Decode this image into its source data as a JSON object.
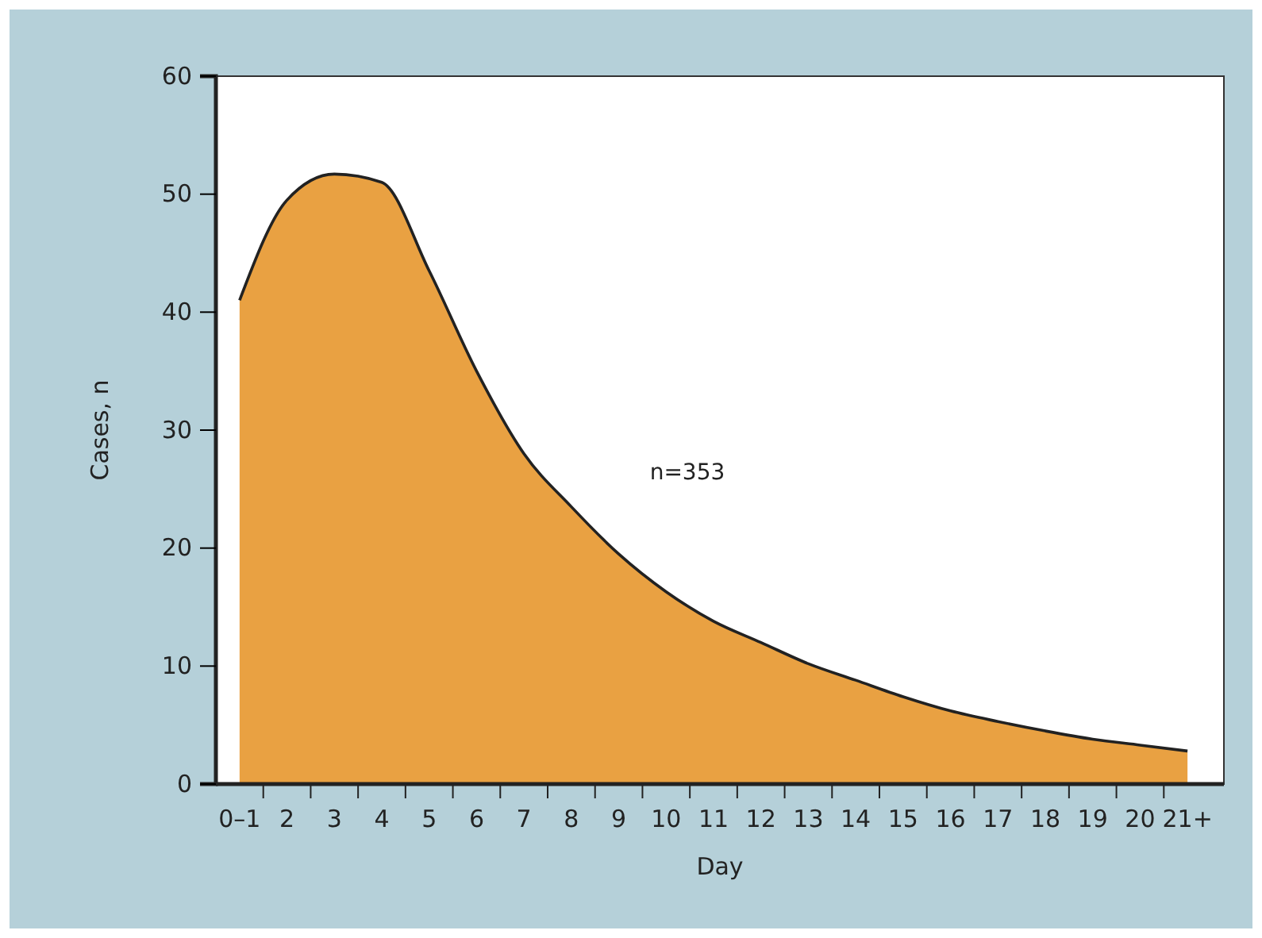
{
  "chart_data": {
    "type": "area",
    "xlabel": "Day",
    "ylabel": "Cases, n",
    "categories": [
      "0–1",
      "2",
      "3",
      "4",
      "5",
      "6",
      "7",
      "8",
      "9",
      "10",
      "11",
      "12",
      "13",
      "14",
      "15",
      "16",
      "17",
      "18",
      "19",
      "20",
      "21+"
    ],
    "series": [
      {
        "color": "#e9a142",
        "values": [
          41,
          49.5,
          51.7,
          51,
          43.5,
          35,
          28,
          23.5,
          19.5,
          16.3,
          13.8,
          12,
          10.2,
          8.8,
          7.4,
          6.2,
          5.3,
          4.5,
          3.8,
          3.3,
          2.8
        ]
      }
    ],
    "ylim": [
      0,
      60
    ],
    "yticks": [
      0,
      10,
      20,
      30,
      40,
      50,
      60
    ],
    "grid": false,
    "annotations": [
      {
        "text": "n=353"
      }
    ]
  }
}
